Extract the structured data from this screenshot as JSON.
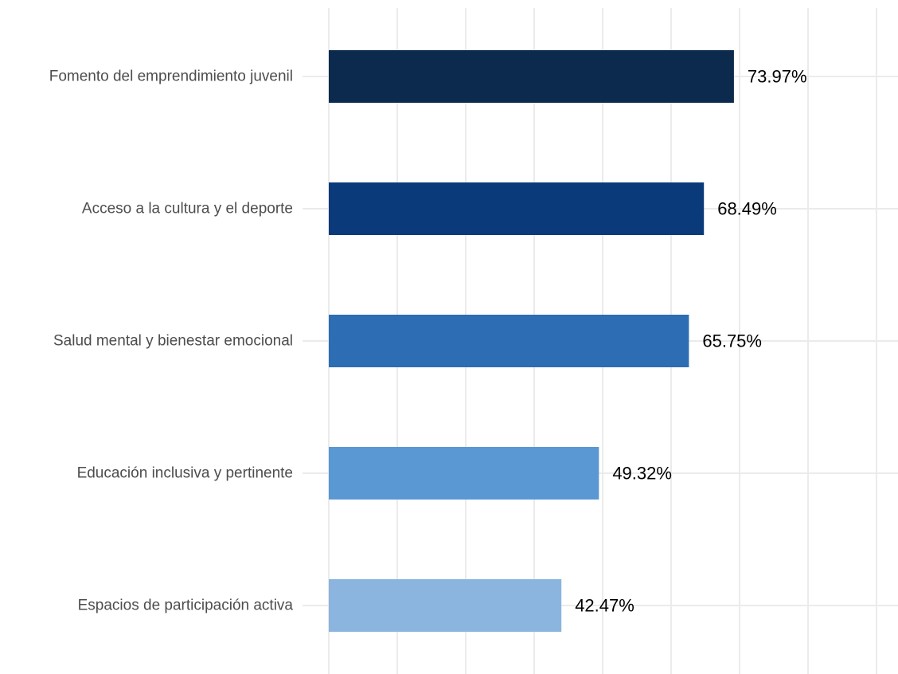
{
  "chart_data": {
    "type": "bar",
    "orientation": "horizontal",
    "categories": [
      "Fomento del emprendimiento juvenil",
      "Acceso a la cultura y el deporte",
      "Salud mental y bienestar emocional",
      "Educación inclusiva y pertinente",
      "Espacios de participación activa"
    ],
    "values": [
      73.97,
      68.49,
      65.75,
      49.32,
      42.47
    ],
    "data_labels": [
      "73.97%",
      "68.49%",
      "65.75%",
      "49.32%",
      "42.47%"
    ],
    "colors": [
      "#0c2a4e",
      "#0b3a7a",
      "#2d6db3",
      "#5a98d3",
      "#8bb4df"
    ],
    "xlim": [
      0,
      100
    ],
    "x_gridlines": [
      0,
      12.5,
      25,
      37.5,
      50,
      62.5,
      75,
      87.5,
      100
    ],
    "x_tick_labels_shown": false,
    "grid": true,
    "legend": "none",
    "title": "",
    "xlabel": "",
    "ylabel": ""
  }
}
